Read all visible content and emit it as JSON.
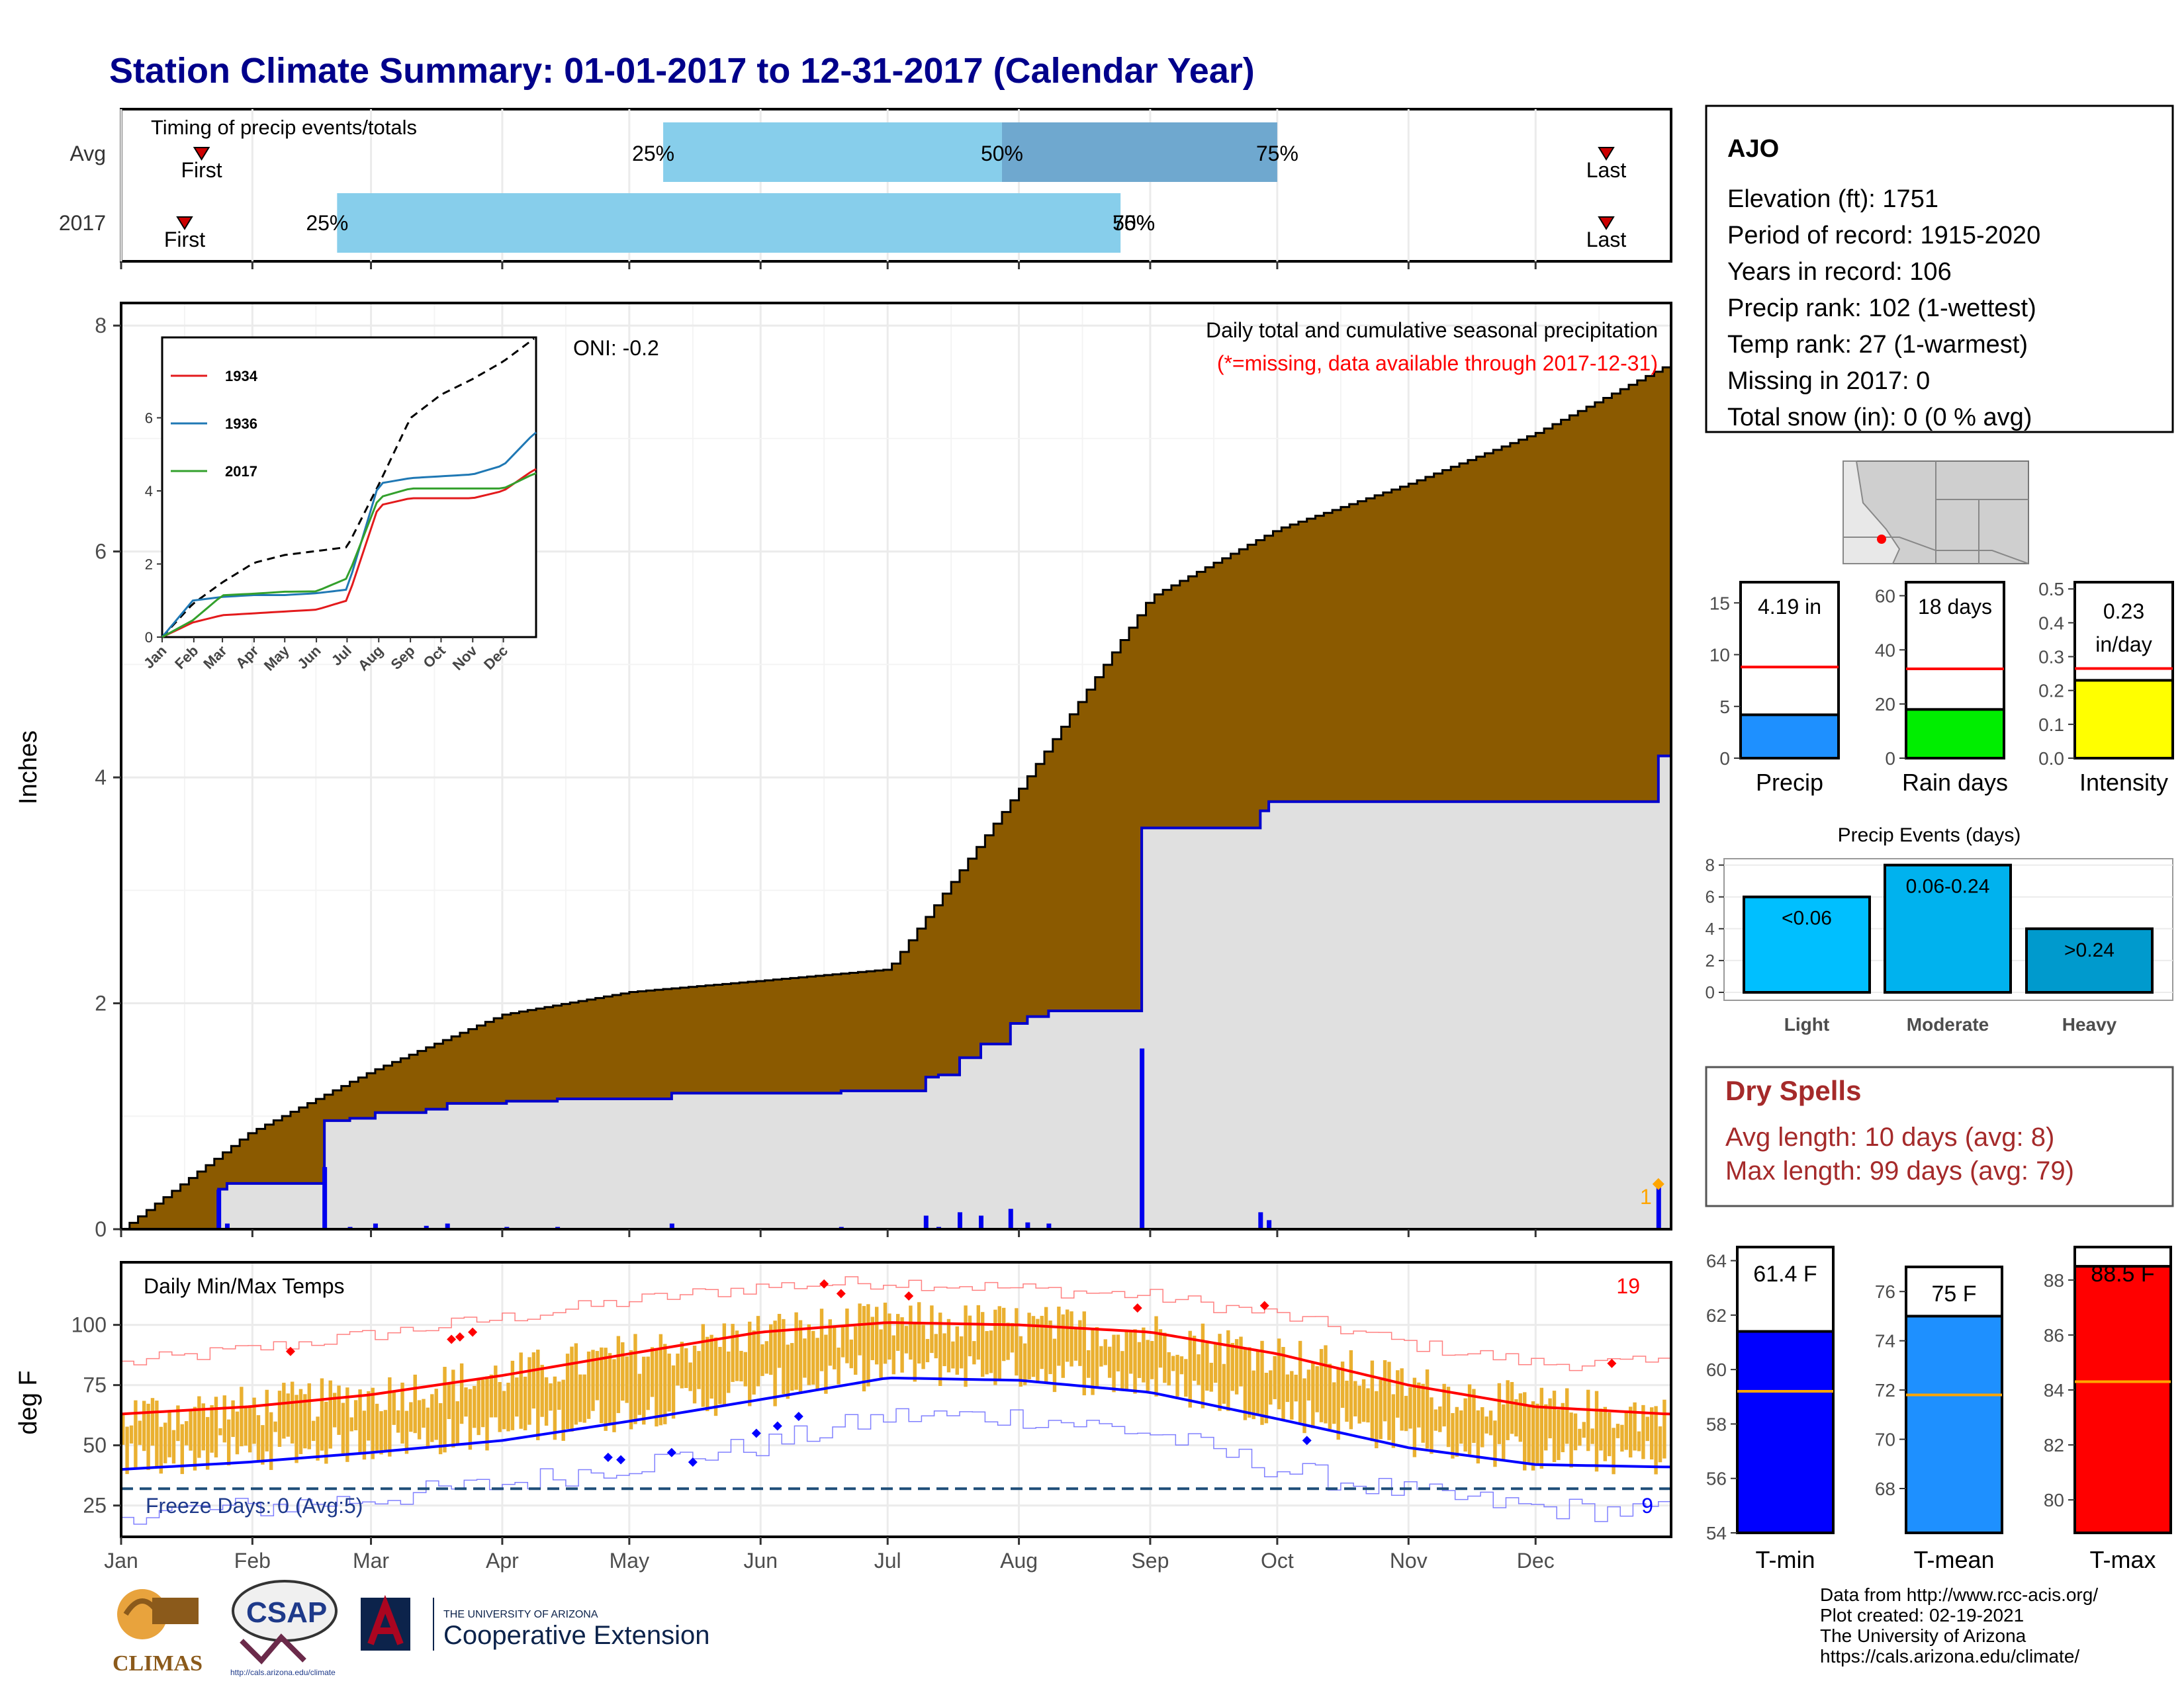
{
  "title": "Station Climate Summary: 01-01-2017 to 12-31-2017 (Calendar Year)",
  "timing": {
    "label": "Timing of precip events/totals",
    "rows": [
      "Avg",
      "2017"
    ],
    "first": "First",
    "last": "Last",
    "avg": {
      "q25_day": 128,
      "q50_day": 208,
      "q75_day": 273
    },
    "y2017": {
      "q25_day": 51,
      "q50_day": 236,
      "q75_day": 236
    },
    "pct": [
      "25%",
      "50%",
      "75%"
    ],
    "first_days": {
      "avg": 19,
      "y2017": 15
    },
    "last_days": {
      "avg": 372,
      "y2017": 372
    }
  },
  "main": {
    "ylabel": "Inches",
    "oni": "ONI: -0.2",
    "note1": "Daily total and cumulative seasonal precipitation",
    "note2": "(*=missing, data available through 2017-12-31)",
    "ylim": [
      0,
      8.2
    ],
    "yticks": [
      0,
      2,
      4,
      6,
      8
    ],
    "snow_label": "1"
  },
  "inset": {
    "yticks": [
      0,
      2,
      4,
      6
    ],
    "months": [
      "Jan",
      "Feb",
      "Mar",
      "Apr",
      "May",
      "Jun",
      "Jul",
      "Aug",
      "Sep",
      "Oct",
      "Nov",
      "Dec"
    ],
    "legend": [
      {
        "name": "1934",
        "color": "#e31a1c"
      },
      {
        "name": "1936",
        "color": "#1f78b4"
      },
      {
        "name": "2017",
        "color": "#33a02c"
      }
    ]
  },
  "temps": {
    "ylabel": "deg F",
    "label": "Daily Min/Max Temps",
    "freeze": "Freeze Days: 0 (Avg:5)",
    "max_count": "19",
    "min_count": "9",
    "yticks": [
      25,
      50,
      75,
      100
    ],
    "freeze_line": 32
  },
  "months": [
    "Jan",
    "Feb",
    "Mar",
    "Apr",
    "May",
    "Jun",
    "Jul",
    "Aug",
    "Sep",
    "Oct",
    "Nov",
    "Dec"
  ],
  "station": {
    "name": "AJO",
    "lines": [
      "Elevation (ft): 1751",
      "Period of record: 1915-2020",
      "Years in record: 106",
      "Precip rank: 102 (1-wettest)",
      "Temp rank: 27 (1-warmest)",
      "Missing in 2017: 0",
      "Total snow (in): 0 (0 % avg)"
    ]
  },
  "summary_bars": [
    {
      "label": "Precip",
      "value_text": "4.19 in",
      "value": 4.19,
      "avg": 8.8,
      "ymax": 17,
      "ticks": [
        0,
        5,
        10,
        15
      ],
      "color": "#1e90ff"
    },
    {
      "label": "Rain days",
      "value_text": "18 days",
      "value": 18,
      "avg": 33,
      "ymax": 65,
      "ticks": [
        0,
        20,
        40,
        60
      ],
      "color": "#00ee00"
    },
    {
      "label": "Intensity",
      "value_text": "0.23 in/day",
      "value": 0.23,
      "avg": 0.265,
      "ymax": 0.52,
      "ticks": [
        "0.0",
        "0.1",
        "0.2",
        "0.3",
        "0.4",
        "0.5"
      ],
      "color": "#ffff00"
    }
  ],
  "events": {
    "title": "Precip Events (days)",
    "ticks": [
      0,
      2,
      4,
      6,
      8
    ],
    "bars": [
      {
        "label": "Light",
        "value": 6,
        "text": "<0.06",
        "color": "#00bfff"
      },
      {
        "label": "Moderate",
        "value": 8,
        "text": "0.06-0.24",
        "color": "#00b2ee"
      },
      {
        "label": "Heavy",
        "value": 4,
        "text": ">0.24",
        "color": "#009acd"
      }
    ]
  },
  "dry": {
    "title": "Dry Spells",
    "avg": "Avg length: 10 days (avg: 8)",
    "max": "Max length: 99 days (avg: 79)"
  },
  "temp_bars": [
    {
      "label": "T-min",
      "value_text": "61.4 F",
      "value": 61.4,
      "avg": 59.2,
      "ymin": 54,
      "ymax": 64.5,
      "ticks": [
        54,
        56,
        58,
        60,
        62,
        64
      ],
      "color": "#0000ff"
    },
    {
      "label": "T-mean",
      "value_text": "75 F",
      "value": 75,
      "avg": 71.8,
      "ymin": 66.2,
      "ymax": 77,
      "ticks": [
        68,
        70,
        72,
        74,
        76
      ],
      "color": "#1e90ff"
    },
    {
      "label": "T-max",
      "value_text": "88.5 F",
      "value": 88.5,
      "avg": 84.3,
      "ymin": 78.8,
      "ymax": 89.2,
      "ticks": [
        80,
        82,
        84,
        86,
        88
      ],
      "color": "#ff0000"
    }
  ],
  "footer": [
    "Data from http://www.rcc-acis.org/",
    "Plot created: 02-19-2021",
    "The University of Arizona",
    "https://cals.arizona.edu/climate/"
  ],
  "logos": {
    "climas": "CLIMAS",
    "csap": "CSAP",
    "csap_url": "http://cals.arizona.edu/climate",
    "ua_small": "THE UNIVERSITY OF ARIZONA",
    "ua_big": "Cooperative Extension"
  },
  "chart_data": [
    {
      "type": "bar",
      "title": "Timing of precip events/totals",
      "categories": [
        "Avg",
        "2017"
      ],
      "series": [
        {
          "name": "25%",
          "values": [
            128,
            51
          ]
        },
        {
          "name": "50%",
          "values": [
            208,
            236
          ]
        },
        {
          "name": "75%",
          "values": [
            273,
            236
          ]
        }
      ]
    },
    {
      "type": "area",
      "title": "Daily total and cumulative seasonal precipitation",
      "ylabel": "Inches",
      "ylim": [
        0,
        8.2
      ],
      "x": [
        0,
        30,
        59,
        90,
        120,
        151,
        181,
        212,
        243,
        273,
        304,
        334,
        365
      ],
      "series": [
        {
          "name": "Avg cumulative",
          "values": [
            0,
            0.85,
            1.4,
            1.9,
            2.1,
            2.2,
            2.3,
            3.9,
            5.6,
            6.2,
            6.6,
            7.05,
            7.65
          ]
        },
        {
          "name": "2017 cumulative",
          "values": [
            0,
            0.43,
            1.07,
            1.11,
            1.16,
            1.17,
            1.5,
            3.57,
            3.8,
            3.8,
            3.8,
            3.8,
            4.19
          ]
        }
      ],
      "daily_bars": [
        [
          23,
          0.35
        ],
        [
          25,
          0.05
        ],
        [
          48,
          0.55
        ],
        [
          54,
          0.02
        ],
        [
          60,
          0.05
        ],
        [
          72,
          0.03
        ],
        [
          77,
          0.05
        ],
        [
          91,
          0.02
        ],
        [
          103,
          0.02
        ],
        [
          130,
          0.05
        ],
        [
          170,
          0.02
        ],
        [
          190,
          0.12
        ],
        [
          193,
          0.02
        ],
        [
          198,
          0.15
        ],
        [
          203,
          0.12
        ],
        [
          210,
          0.18
        ],
        [
          214,
          0.06
        ],
        [
          219,
          0.05
        ],
        [
          241,
          1.6
        ],
        [
          269,
          0.15
        ],
        [
          271,
          0.08
        ],
        [
          363,
          0.4
        ]
      ]
    },
    {
      "type": "line",
      "title": "Daily Min/Max Temps",
      "ylabel": "deg F",
      "x": [
        0,
        30,
        59,
        90,
        120,
        151,
        181,
        212,
        243,
        273,
        304,
        334,
        365
      ],
      "series": [
        {
          "name": "Avg max",
          "values": [
            63,
            66,
            71,
            79,
            88,
            97,
            101,
            100,
            97,
            88,
            75,
            66,
            63
          ]
        },
        {
          "name": "Avg min",
          "values": [
            40,
            43,
            47,
            52,
            60,
            69,
            78,
            77,
            72,
            61,
            49,
            42,
            41
          ]
        },
        {
          "name": "Record max",
          "values": [
            84,
            90,
            96,
            103,
            110,
            116,
            118,
            115,
            112,
            104,
            92,
            84,
            84
          ]
        },
        {
          "name": "Record min",
          "values": [
            22,
            24,
            28,
            34,
            42,
            50,
            62,
            62,
            55,
            40,
            30,
            24,
            22
          ]
        }
      ]
    },
    {
      "type": "bar",
      "categories": [
        "Light",
        "Moderate",
        "Heavy"
      ],
      "values": [
        6,
        8,
        4
      ],
      "title": "Precip Events (days)"
    }
  ]
}
